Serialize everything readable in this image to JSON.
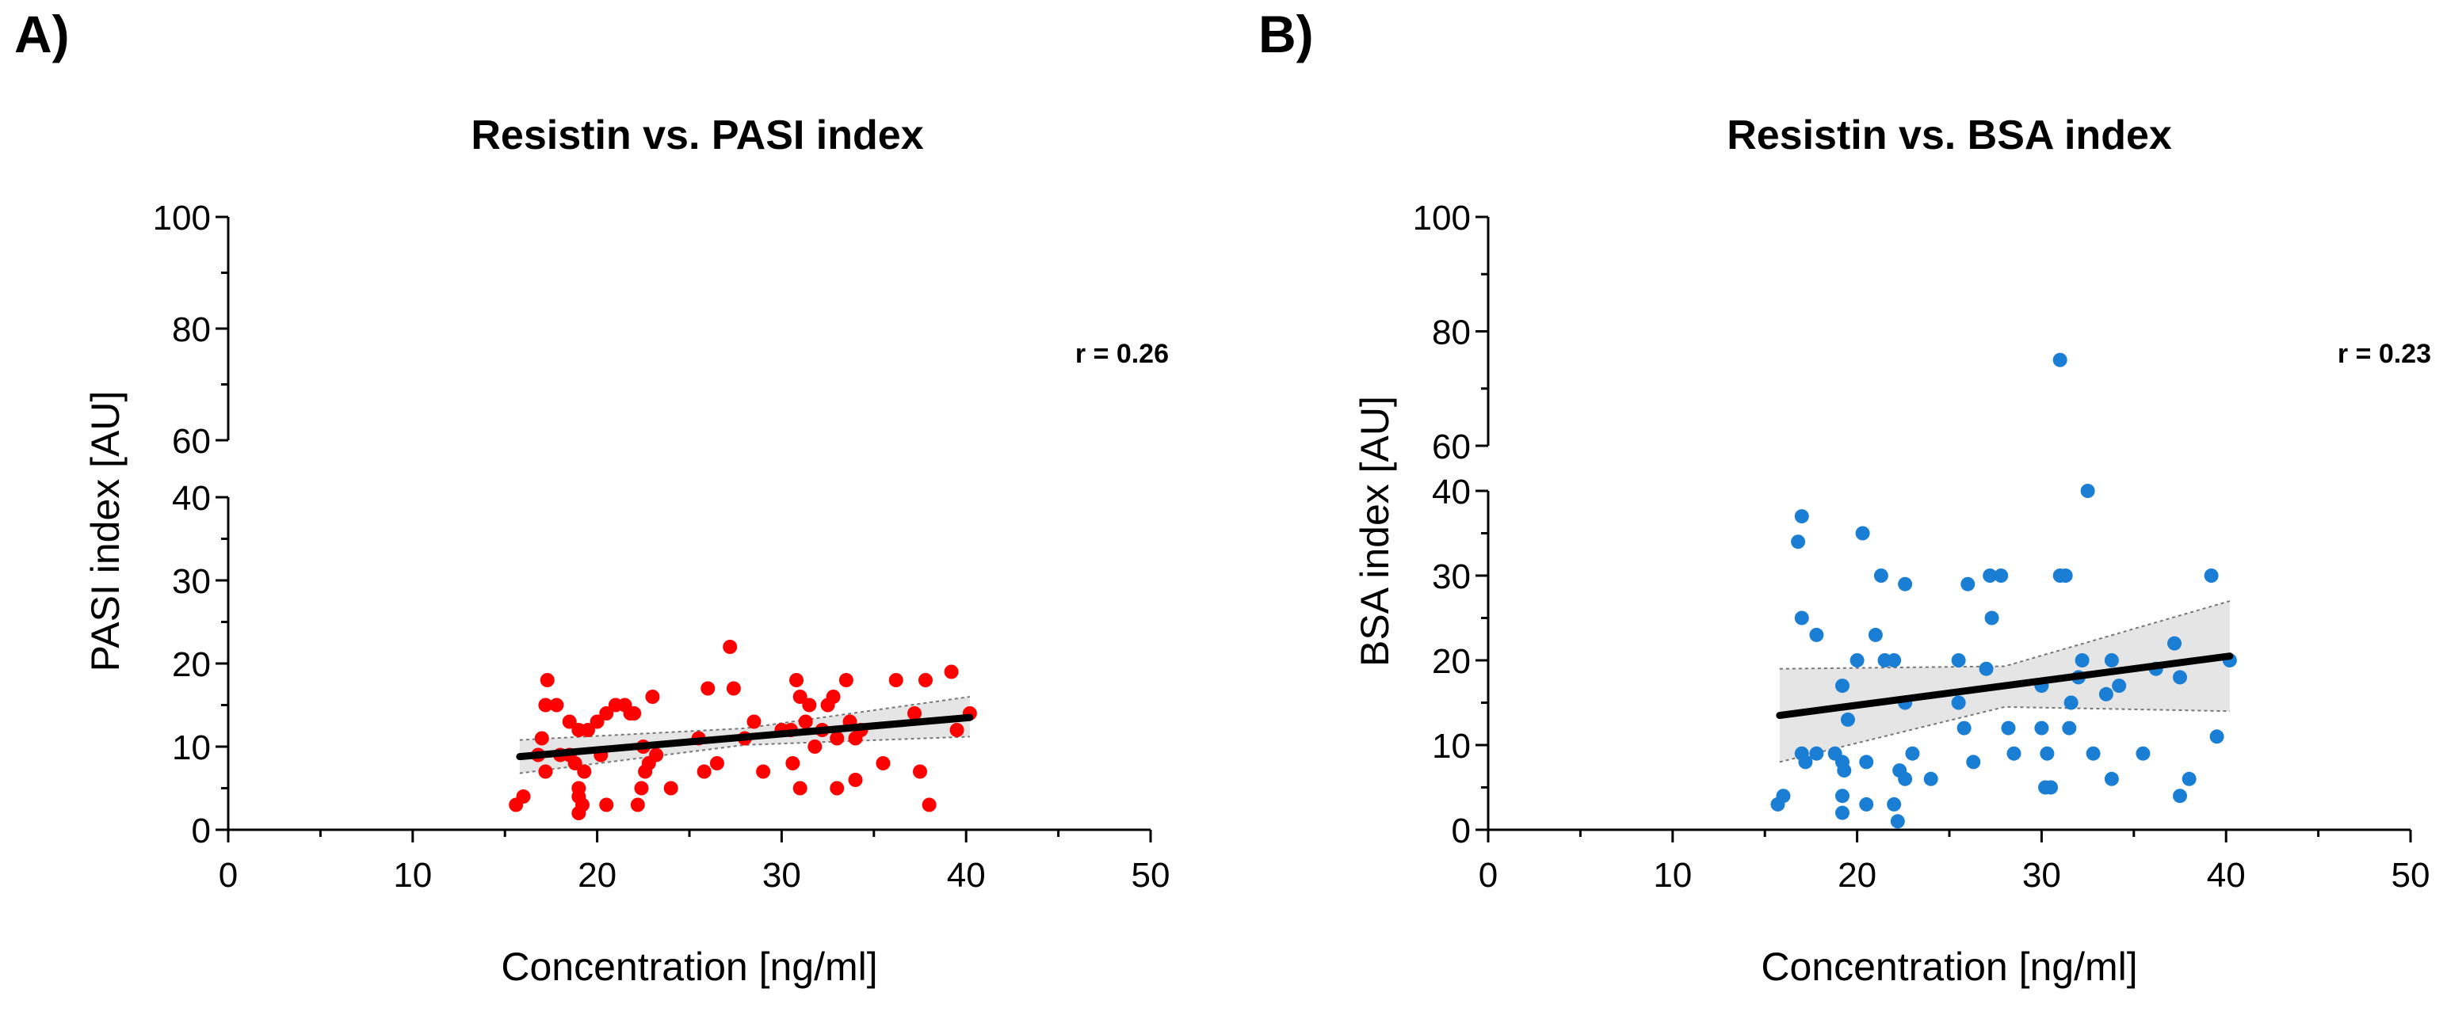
{
  "chart_data": [
    {
      "type": "scatter",
      "panel_label": "A)",
      "title": "Resistin vs. PASI index",
      "xlabel": "Concentration [ng/ml]",
      "ylabel": "PASI  index [AU]",
      "r_text": "r  = 0.26",
      "color": "#ff0000",
      "band_color": "#dcdcdc",
      "xlim": [
        0,
        50
      ],
      "x_ticks": [
        0,
        10,
        20,
        30,
        40,
        50
      ],
      "x_tick_labels": [
        "0",
        "10",
        "20",
        "30",
        "40",
        "50"
      ],
      "ylim_lower": [
        0,
        40
      ],
      "ylim_upper": [
        60,
        100
      ],
      "y_ticks_lower": [
        0,
        10,
        20,
        30,
        40
      ],
      "y_tick_labels_lower": [
        "0",
        "10",
        "20",
        "30",
        "40"
      ],
      "y_ticks_upper": [
        60,
        80,
        100
      ],
      "y_tick_labels_upper": [
        "60",
        "80",
        "100"
      ],
      "fit": {
        "x": [
          15.8,
          40.2
        ],
        "y": [
          8.8,
          13.5
        ]
      },
      "ci_upper": {
        "x": [
          15.8,
          28,
          40.2
        ],
        "y": [
          10.8,
          12.2,
          16.0
        ]
      },
      "ci_lower": {
        "x": [
          15.8,
          28,
          40.2
        ],
        "y": [
          6.8,
          10.2,
          11.2
        ]
      },
      "points": [
        [
          15.6,
          3
        ],
        [
          16,
          4
        ],
        [
          16.8,
          9
        ],
        [
          17,
          11
        ],
        [
          17.2,
          15
        ],
        [
          17.3,
          18
        ],
        [
          17.2,
          7
        ],
        [
          17.8,
          15
        ],
        [
          18,
          9
        ],
        [
          18.5,
          13
        ],
        [
          18.5,
          9
        ],
        [
          18.8,
          8
        ],
        [
          19,
          12
        ],
        [
          19,
          5
        ],
        [
          19,
          4
        ],
        [
          19,
          2
        ],
        [
          19.2,
          3
        ],
        [
          19.3,
          7
        ],
        [
          19.5,
          12
        ],
        [
          20,
          13
        ],
        [
          20.2,
          9
        ],
        [
          20.5,
          14
        ],
        [
          20.5,
          3
        ],
        [
          21,
          15
        ],
        [
          21.5,
          15
        ],
        [
          21.8,
          14
        ],
        [
          22,
          14
        ],
        [
          22.2,
          3
        ],
        [
          22.4,
          5
        ],
        [
          22.5,
          10
        ],
        [
          22.6,
          7
        ],
        [
          22.8,
          8
        ],
        [
          23,
          16
        ],
        [
          23.2,
          9
        ],
        [
          24,
          5
        ],
        [
          25.5,
          11
        ],
        [
          25.8,
          7
        ],
        [
          26,
          17
        ],
        [
          26.5,
          8
        ],
        [
          27.2,
          22
        ],
        [
          27.4,
          17
        ],
        [
          28,
          11
        ],
        [
          28.5,
          13
        ],
        [
          29,
          7
        ],
        [
          30,
          12
        ],
        [
          30.5,
          12
        ],
        [
          30.6,
          8
        ],
        [
          30.8,
          18
        ],
        [
          31,
          16
        ],
        [
          31,
          5
        ],
        [
          31.3,
          13
        ],
        [
          31.5,
          15
        ],
        [
          31.8,
          10
        ],
        [
          32.2,
          12
        ],
        [
          32.5,
          15
        ],
        [
          32.8,
          16
        ],
        [
          33,
          5
        ],
        [
          33,
          11
        ],
        [
          33.5,
          18
        ],
        [
          33.7,
          13
        ],
        [
          34,
          6
        ],
        [
          34,
          11
        ],
        [
          34.3,
          12
        ],
        [
          35.5,
          8
        ],
        [
          36.2,
          18
        ],
        [
          37.2,
          14
        ],
        [
          37.5,
          7
        ],
        [
          37.8,
          18
        ],
        [
          38,
          3
        ],
        [
          39.2,
          19
        ],
        [
          39.5,
          12
        ],
        [
          40.2,
          14
        ]
      ]
    },
    {
      "type": "scatter",
      "panel_label": "B)",
      "title": "Resistin vs. BSA index",
      "xlabel": "Concentration [ng/ml]",
      "ylabel": "BSA index [AU]",
      "r_text": "r  = 0.23",
      "color": "#1a7fd4",
      "band_color": "#dcdcdc",
      "xlim": [
        0,
        50
      ],
      "x_ticks": [
        0,
        10,
        20,
        30,
        40,
        50
      ],
      "x_tick_labels": [
        "0",
        "10",
        "20",
        "30",
        "40",
        "50"
      ],
      "ylim_lower": [
        0,
        40
      ],
      "ylim_upper": [
        60,
        100
      ],
      "y_ticks_lower": [
        0,
        10,
        20,
        30,
        40
      ],
      "y_tick_labels_lower": [
        "0",
        "10",
        "20",
        "30",
        "40"
      ],
      "y_ticks_upper": [
        60,
        80,
        100
      ],
      "y_tick_labels_upper": [
        "60",
        "80",
        "100"
      ],
      "fit": {
        "x": [
          15.8,
          40.2
        ],
        "y": [
          13.5,
          20.5
        ]
      },
      "ci_upper": {
        "x": [
          15.8,
          28,
          40.2
        ],
        "y": [
          19.0,
          19.3,
          27.0
        ]
      },
      "ci_lower": {
        "x": [
          15.8,
          28,
          40.2
        ],
        "y": [
          8.0,
          14.5,
          14.0
        ]
      },
      "points": [
        [
          15.7,
          3
        ],
        [
          16,
          4
        ],
        [
          16.8,
          34
        ],
        [
          17,
          37
        ],
        [
          17,
          25
        ],
        [
          17,
          9
        ],
        [
          17.2,
          8
        ],
        [
          17.8,
          9
        ],
        [
          17.8,
          23
        ],
        [
          18.8,
          9
        ],
        [
          19.2,
          17
        ],
        [
          19.2,
          8
        ],
        [
          19.3,
          7
        ],
        [
          19.5,
          13
        ],
        [
          19.2,
          4
        ],
        [
          19.2,
          2
        ],
        [
          20,
          20
        ],
        [
          20.3,
          35
        ],
        [
          20.5,
          8
        ],
        [
          20.5,
          3
        ],
        [
          21,
          23
        ],
        [
          21.3,
          30
        ],
        [
          21.5,
          20
        ],
        [
          22,
          20
        ],
        [
          22,
          3
        ],
        [
          22.2,
          1
        ],
        [
          22.3,
          7
        ],
        [
          22.6,
          29
        ],
        [
          22.6,
          15
        ],
        [
          22.6,
          6
        ],
        [
          23,
          9
        ],
        [
          24,
          6
        ],
        [
          25.5,
          20
        ],
        [
          25.5,
          15
        ],
        [
          25.8,
          12
        ],
        [
          26,
          29
        ],
        [
          26.3,
          8
        ],
        [
          27,
          19
        ],
        [
          27.2,
          30
        ],
        [
          27.3,
          25
        ],
        [
          27.8,
          30
        ],
        [
          28.2,
          12
        ],
        [
          28.5,
          9
        ],
        [
          30,
          12
        ],
        [
          30,
          17
        ],
        [
          30.2,
          5
        ],
        [
          30.3,
          9
        ],
        [
          30.5,
          5
        ],
        [
          31,
          75
        ],
        [
          31,
          30
        ],
        [
          31.3,
          30
        ],
        [
          31.5,
          12
        ],
        [
          31.6,
          15
        ],
        [
          32,
          18
        ],
        [
          32.2,
          20
        ],
        [
          32.5,
          40
        ],
        [
          32.8,
          9
        ],
        [
          33.5,
          16
        ],
        [
          33.8,
          6
        ],
        [
          33.8,
          20
        ],
        [
          34.2,
          17
        ],
        [
          35.5,
          9
        ],
        [
          36.2,
          19
        ],
        [
          37.2,
          22
        ],
        [
          37.5,
          18
        ],
        [
          37.5,
          4
        ],
        [
          38,
          6
        ],
        [
          39.2,
          30
        ],
        [
          39.5,
          11
        ],
        [
          40.2,
          20
        ]
      ]
    }
  ]
}
